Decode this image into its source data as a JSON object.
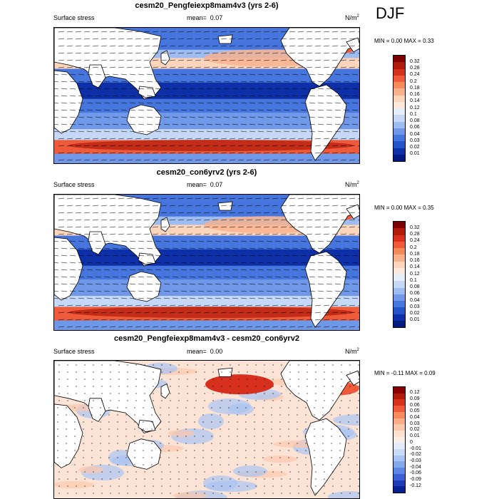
{
  "season": "DJF",
  "panels": [
    {
      "title": "cesm20_Pengfeiexp8mam4v3 (yrs 2-6)",
      "variable": "Surface stress",
      "mean_label": "mean=",
      "mean_value": "0.07",
      "units": "N/m",
      "units_sup": "2",
      "min_label": "MIN =",
      "min_value": "0.00",
      "max_label": "MAX =",
      "max_value": "0.33",
      "colorbar_labels": [
        "0.32",
        "0.28",
        "0.24",
        "0.2",
        "0.18",
        "0.16",
        "0.14",
        "0.12",
        "0.1",
        "0.08",
        "0.06",
        "0.04",
        "0.03",
        "0.02",
        "0.01"
      ],
      "colorbar_colors": [
        "#7f0000",
        "#b01a0a",
        "#d7301f",
        "#ef5a3a",
        "#f58a5a",
        "#f9b08c",
        "#fdd5bd",
        "#fbe9dd",
        "#e6eefb",
        "#c6d8f7",
        "#9dbcf1",
        "#6f98e8",
        "#4575dd",
        "#2452c7",
        "#0d2fa8",
        "#001c7f"
      ],
      "style": "mean"
    },
    {
      "title": "cesm20_con6yrv2 (yrs 2-6)",
      "variable": "Surface stress",
      "mean_label": "mean=",
      "mean_value": "0.07",
      "units": "N/m",
      "units_sup": "2",
      "min_label": "MIN =",
      "min_value": "0.00",
      "max_label": "MAX =",
      "max_value": "0.35",
      "colorbar_labels": [
        "0.32",
        "0.28",
        "0.24",
        "0.2",
        "0.18",
        "0.16",
        "0.14",
        "0.12",
        "0.1",
        "0.08",
        "0.06",
        "0.04",
        "0.03",
        "0.02",
        "0.01"
      ],
      "colorbar_colors": [
        "#7f0000",
        "#b01a0a",
        "#d7301f",
        "#ef5a3a",
        "#f58a5a",
        "#f9b08c",
        "#fdd5bd",
        "#fbe9dd",
        "#e6eefb",
        "#c6d8f7",
        "#9dbcf1",
        "#6f98e8",
        "#4575dd",
        "#2452c7",
        "#0d2fa8",
        "#001c7f"
      ],
      "style": "mean"
    },
    {
      "title": "cesm20_Pengfeiexp8mam4v3 - cesm20_con6yrv2",
      "variable": "Surface stress",
      "mean_label": "mean=",
      "mean_value": "0.00",
      "units": "N/m",
      "units_sup": "2",
      "min_label": "MIN =",
      "min_value": "-0.11",
      "max_label": "MAX =",
      "max_value": "0.09",
      "colorbar_labels": [
        "0.12",
        "0.09",
        "0.06",
        "0.05",
        "0.04",
        "0.03",
        "0.02",
        "0.01",
        "0",
        "-0.01",
        "-0.02",
        "-0.03",
        "-0.04",
        "-0.06",
        "-0.09",
        "-0.12"
      ],
      "colorbar_colors": [
        "#8b0000",
        "#b01a0a",
        "#d7301f",
        "#ef5a3a",
        "#f58a5a",
        "#f9ac86",
        "#fcc8ad",
        "#fde0cf",
        "#fbeee6",
        "#e3ecfb",
        "#c9dbf7",
        "#a9c4f2",
        "#85a8ec",
        "#5f86e2",
        "#3d5fd3",
        "#1f3ab8",
        "#0a1f90"
      ],
      "style": "diff"
    }
  ]
}
